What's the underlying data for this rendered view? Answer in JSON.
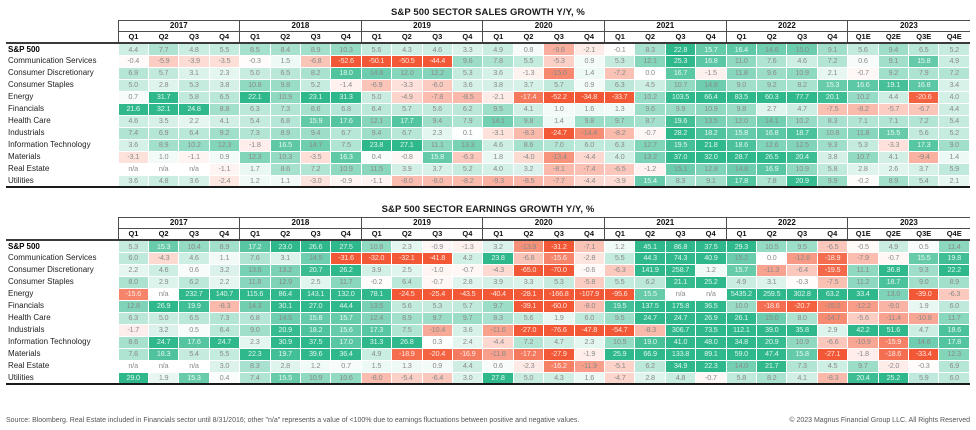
{
  "footer": {
    "source": "Source: Bloomberg. Real Estate included in Financials sector until 8/31/2016; other \"n/a\" represents a value of <100% due to earnings fluctuations between positive and negative values.",
    "copyright": "© 2023 Magnus Financial Group LLC. All Rights Reserved"
  },
  "colors": {
    "positive_full": "#2eb88b",
    "negative_full": "#f25835",
    "neutral": "#ffffff",
    "text_light": "#8a8a8a",
    "text_on_dark": "rgba(255,255,255,0.85)"
  },
  "chart_data": [
    {
      "type": "heatmap",
      "title": "S&P 500 SECTOR SALES GROWTH Y/Y, %",
      "unit": "% y/y",
      "years": [
        {
          "label": "2017",
          "quarters": [
            "Q1",
            "Q2",
            "Q3",
            "Q4"
          ]
        },
        {
          "label": "2018",
          "quarters": [
            "Q1",
            "Q2",
            "Q3",
            "Q4"
          ]
        },
        {
          "label": "2019",
          "quarters": [
            "Q1",
            "Q2",
            "Q3",
            "Q4"
          ]
        },
        {
          "label": "2020",
          "quarters": [
            "Q1",
            "Q2",
            "Q3",
            "Q4"
          ]
        },
        {
          "label": "2021",
          "quarters": [
            "Q1",
            "Q2",
            "Q3",
            "Q4"
          ]
        },
        {
          "label": "2022",
          "quarters": [
            "Q1",
            "Q2",
            "Q3",
            "Q4"
          ]
        },
        {
          "label": "2023",
          "quarters": [
            "Q1E",
            "Q2E",
            "Q3E",
            "Q4E"
          ]
        }
      ],
      "rows": [
        {
          "name": "S&P 500",
          "bold": true,
          "values": [
            "4.4",
            "7.7",
            "4.8",
            "5.5",
            "8.5",
            "8.4",
            "8.9",
            "10.3",
            "5.6",
            "4.3",
            "4.6",
            "3.3",
            "4.9",
            "0.8",
            "-9.8",
            "-2.1",
            "-0.1",
            "8.3",
            "22.8",
            "15.7",
            "16.4",
            "14.6",
            "15.0",
            "9.1",
            "5.6",
            "9.4",
            "6.5",
            "5.2"
          ]
        },
        {
          "name": "Communication Services",
          "bold": false,
          "values": [
            "-0.4",
            "-5.9",
            "-3.9",
            "-3.5",
            "-0.3",
            "1.5",
            "-6.8",
            "-52.6",
            "-50.1",
            "-50.5",
            "-44.4",
            "9.6",
            "7.8",
            "5.5",
            "-5.3",
            "0.9",
            "5.3",
            "12.1",
            "25.3",
            "16.8",
            "11.0",
            "7.6",
            "4.6",
            "7.2",
            "0.6",
            "9.1",
            "15.8",
            "4.9"
          ]
        },
        {
          "name": "Consumer Discretionary",
          "bold": false,
          "values": [
            "6.9",
            "5.7",
            "3.1",
            "2.3",
            "5.0",
            "6.5",
            "8.2",
            "18.0",
            "14.8",
            "12.0",
            "12.2",
            "5.3",
            "3.6",
            "-1.3",
            "-15.0",
            "1.4",
            "-7.2",
            "0.0",
            "16.7",
            "-1.5",
            "11.8",
            "9.6",
            "10.9",
            "2.1",
            "-0.7",
            "9.2",
            "7.9",
            "7.2"
          ]
        },
        {
          "name": "Consumer Staples",
          "bold": false,
          "values": [
            "5.0",
            "2.8",
            "5.3",
            "3.8",
            "10.8",
            "9.8",
            "5.2",
            "-1.4",
            "-6.9",
            "-3.3",
            "-6.0",
            "3.6",
            "3.8",
            "3.7",
            "5.7",
            "0.9",
            "6.3",
            "4.5",
            "10.7",
            "14.8",
            "9.0",
            "9.2",
            "8.2",
            "15.3",
            "16.6",
            "19.1",
            "16.8",
            "3.4"
          ]
        },
        {
          "name": "Energy",
          "bold": false,
          "values": [
            "0.7",
            "31.7",
            "5.8",
            "6.5",
            "22.1",
            "10.9",
            "23.1",
            "31.3",
            "5.0",
            "-4.9",
            "-7.8",
            "-8.5",
            "-2.1",
            "-17.4",
            "-52.2",
            "-34.8",
            "-33.7",
            "10.2",
            "103.5",
            "66.4",
            "83.5",
            "60.3",
            "77.7",
            "20.1",
            "10.2",
            "4.4",
            "-20.6",
            "4.0"
          ]
        },
        {
          "name": "Financials",
          "bold": false,
          "values": [
            "21.6",
            "32.1",
            "24.8",
            "8.8",
            "6.3",
            "7.3",
            "8.6",
            "6.8",
            "6.4",
            "5.7",
            "5.6",
            "6.2",
            "9.5",
            "4.1",
            "1.0",
            "1.6",
            "1.3",
            "9.6",
            "9.9",
            "10.9",
            "9.8",
            "2.7",
            "4.7",
            "-7.5",
            "-8.2",
            "-5.7",
            "-6.7",
            "4.4"
          ]
        },
        {
          "name": "Health Care",
          "bold": false,
          "values": [
            "4.6",
            "3.5",
            "2.2",
            "4.1",
            "5.4",
            "6.8",
            "15.9",
            "17.6",
            "12.1",
            "17.7",
            "9.4",
            "7.9",
            "14.1",
            "9.8",
            "1.4",
            "9.8",
            "9.7",
            "8.7",
            "19.6",
            "13.5",
            "12.0",
            "14.1",
            "10.2",
            "8.3",
            "7.1",
            "7.1",
            "7.2",
            "5.4"
          ]
        },
        {
          "name": "Industrials",
          "bold": false,
          "values": [
            "7.4",
            "6.9",
            "6.4",
            "9.2",
            "7.3",
            "8.9",
            "9.4",
            "6.7",
            "9.4",
            "6.7",
            "2.3",
            "0.1",
            "-3.1",
            "-8.3",
            "-24.7",
            "-14.4",
            "-8.2",
            "-0.7",
            "28.2",
            "18.2",
            "15.8",
            "16.8",
            "18.7",
            "10.8",
            "11.8",
            "15.5",
            "5.6",
            "5.2"
          ]
        },
        {
          "name": "Information Technology",
          "bold": false,
          "values": [
            "3.6",
            "8.9",
            "10.2",
            "12.3",
            "-1.8",
            "16.5",
            "14.7",
            "7.5",
            "23.8",
            "27.1",
            "11.1",
            "13.3",
            "4.6",
            "8.6",
            "7.0",
            "6.0",
            "6.3",
            "12.7",
            "19.5",
            "21.8",
            "18.6",
            "12.6",
            "12.5",
            "9.3",
            "5.3",
            "-3.3",
            "17.3",
            "9.0"
          ]
        },
        {
          "name": "Materials",
          "bold": false,
          "values": [
            "-3.1",
            "1.0",
            "-1.1",
            "0.9",
            "12.3",
            "10.3",
            "-3.5",
            "16.3",
            "0.4",
            "-0.8",
            "15.8",
            "-6.3",
            "1.8",
            "-4.0",
            "-13.4",
            "-4.4",
            "4.0",
            "13.2",
            "37.0",
            "32.0",
            "28.7",
            "26.5",
            "20.4",
            "3.8",
            "10.7",
            "4.1",
            "-9.4",
            "1.4"
          ]
        },
        {
          "name": "Real Estate",
          "bold": false,
          "values": [
            "n/a",
            "n/a",
            "n/a",
            "-1.1",
            "1.7",
            "8.6",
            "7.2",
            "10.9",
            "11.5",
            "3.9",
            "3.7",
            "5.2",
            "4.0",
            "3.2",
            "-8.1",
            "-7.4",
            "-6.5",
            "-1.2",
            "15.1",
            "12.8",
            "14.8",
            "16.9",
            "10.9",
            "5.8",
            "2.8",
            "2.6",
            "3.7",
            "5.9"
          ]
        },
        {
          "name": "Utilities",
          "bold": false,
          "values": [
            "3.6",
            "4.8",
            "3.6",
            "-2.4",
            "1.2",
            "1.1",
            "-3.0",
            "-0.9",
            "-1.1",
            "-8.0",
            "-8.0",
            "-8.2",
            "-9.3",
            "-8.5",
            "-7.7",
            "-4.4",
            "-3.9",
            "15.4",
            "8.3",
            "9.1",
            "17.8",
            "7.8",
            "20.9",
            "9.9",
            "-0.2",
            "8.9",
            "5.4",
            "2.1"
          ]
        }
      ]
    },
    {
      "type": "heatmap",
      "title": "S&P 500 SECTOR EARNINGS GROWTH Y/Y, %",
      "unit": "% y/y",
      "years": [
        {
          "label": "2017",
          "quarters": [
            "Q1",
            "Q2",
            "Q3",
            "Q4"
          ]
        },
        {
          "label": "2018",
          "quarters": [
            "Q1",
            "Q2",
            "Q3",
            "Q4"
          ]
        },
        {
          "label": "2019",
          "quarters": [
            "Q1",
            "Q2",
            "Q3",
            "Q4"
          ]
        },
        {
          "label": "2020",
          "quarters": [
            "Q1",
            "Q2",
            "Q3",
            "Q4"
          ]
        },
        {
          "label": "2021",
          "quarters": [
            "Q1",
            "Q2",
            "Q3",
            "Q4"
          ]
        },
        {
          "label": "2022",
          "quarters": [
            "Q1",
            "Q2",
            "Q3",
            "Q4"
          ]
        },
        {
          "label": "2023",
          "quarters": [
            "Q1E",
            "Q2E",
            "Q3E",
            "Q4E"
          ]
        }
      ],
      "rows": [
        {
          "name": "S&P 500",
          "bold": true,
          "values": [
            "5.3",
            "15.3",
            "10.4",
            "8.9",
            "17.2",
            "23.0",
            "26.6",
            "27.5",
            "10.8",
            "2.3",
            "-0.9",
            "-1.3",
            "3.2",
            "-13.9",
            "-31.2",
            "-7.1",
            "1.2",
            "45.1",
            "86.8",
            "37.5",
            "29.3",
            "10.5",
            "9.5",
            "-6.5",
            "-0.5",
            "4.9",
            "0.5",
            "11.4"
          ]
        },
        {
          "name": "Communication Services",
          "bold": false,
          "values": [
            "6.0",
            "-4.3",
            "4.6",
            "1.1",
            "7.6",
            "3.1",
            "14.5",
            "-31.6",
            "-32.0",
            "-32.1",
            "-41.8",
            "4.2",
            "23.8",
            "-6.8",
            "-15.6",
            "-2.8",
            "5.5",
            "44.3",
            "74.3",
            "40.9",
            "15.2",
            "0.0",
            "-12.6",
            "-18.9",
            "-7.9",
            "-0.7",
            "15.5",
            "19.8"
          ]
        },
        {
          "name": "Consumer Discretionary",
          "bold": false,
          "values": [
            "2.2",
            "4.6",
            "0.6",
            "3.2",
            "13.6",
            "13.2",
            "20.7",
            "26.2",
            "3.9",
            "2.5",
            "-1.0",
            "-0.7",
            "-4.3",
            "-65.0",
            "-70.0",
            "-0.6",
            "-6.3",
            "141.9",
            "258.7",
            "1.2",
            "15.7",
            "-11.3",
            "-6.4",
            "-19.5",
            "11.1",
            "36.8",
            "9.3",
            "22.2"
          ]
        },
        {
          "name": "Consumer Staples",
          "bold": false,
          "values": [
            "8.0",
            "2.9",
            "6.2",
            "2.2",
            "11.8",
            "12.9",
            "2.5",
            "11.7",
            "-0.2",
            "6.4",
            "-0.7",
            "2.8",
            "3.9",
            "3.3",
            "5.3",
            "-5.8",
            "5.5",
            "6.2",
            "21.1",
            "25.2",
            "4.9",
            "3.1",
            "-0.3",
            "-7.5",
            "11.2",
            "18.7",
            "9.0",
            "8.9"
          ]
        },
        {
          "name": "Energy",
          "bold": false,
          "values": [
            "-15.6",
            "n/a",
            "232.7",
            "140.7",
            "115.6",
            "86.4",
            "143.1",
            "132.0",
            "78.1",
            "-24.5",
            "-25.4",
            "-43.5",
            "-40.4",
            "-28.1",
            "-166.8",
            "-107.9",
            "-95.6",
            "15.5",
            "n/a",
            "n/a",
            "5435.2",
            "259.5",
            "302.8",
            "63.2",
            "33.4",
            "13.0",
            "-39.0",
            "-6.3"
          ]
        },
        {
          "name": "Financials",
          "bold": false,
          "values": [
            "12.8",
            "26.9",
            "19.9",
            "-8.3",
            "14.3",
            "30.1",
            "27.0",
            "44.4",
            "13.5",
            "5.6",
            "5.3",
            "5.7",
            "9.7",
            "-39.1",
            "-60.0",
            "-8.0",
            "19.5",
            "137.5",
            "175.8",
            "36.5",
            "10.0",
            "-18.6",
            "-20.7",
            "-15.0",
            "-12.2",
            "-9.0",
            "1.9",
            "6.0"
          ]
        },
        {
          "name": "Health Care",
          "bold": false,
          "values": [
            "6.3",
            "5.0",
            "6.5",
            "7.3",
            "6.8",
            "14.5",
            "15.8",
            "15.7",
            "12.4",
            "8.9",
            "9.7",
            "9.7",
            "8.3",
            "5.6",
            "1.9",
            "6.0",
            "9.5",
            "24.7",
            "24.7",
            "26.9",
            "26.1",
            "15.0",
            "8.0",
            "-14.7",
            "-5.6",
            "-11.4",
            "-10.8",
            "11.7"
          ]
        },
        {
          "name": "Industrials",
          "bold": false,
          "values": [
            "-1.7",
            "3.2",
            "0.5",
            "6.4",
            "9.0",
            "20.9",
            "18.2",
            "15.6",
            "17.3",
            "7.5",
            "-10.4",
            "3.6",
            "-11.6",
            "-27.0",
            "-76.6",
            "-47.8",
            "-54.7",
            "-8.3",
            "306.7",
            "73.5",
            "112.1",
            "39.0",
            "35.8",
            "2.9",
            "42.2",
            "51.6",
            "4.7",
            "18.6"
          ]
        },
        {
          "name": "Information Technology",
          "bold": false,
          "values": [
            "8.6",
            "24.7",
            "17.6",
            "24.7",
            "2.3",
            "30.9",
            "37.5",
            "17.0",
            "31.3",
            "26.8",
            "0.3",
            "2.4",
            "-4.4",
            "7.2",
            "4.7",
            "2.3",
            "10.5",
            "19.0",
            "41.0",
            "48.0",
            "34.8",
            "20.9",
            "10.9",
            "-6.6",
            "-10.9",
            "-15.9",
            "14.6",
            "17.8"
          ]
        },
        {
          "name": "Materials",
          "bold": false,
          "values": [
            "7.6",
            "18.3",
            "5.4",
            "5.5",
            "22.3",
            "19.7",
            "39.6",
            "36.4",
            "4.9",
            "-18.9",
            "-20.4",
            "-16.9",
            "-11.8",
            "-17.2",
            "-27.9",
            "-1.9",
            "25.9",
            "66.9",
            "133.8",
            "89.1",
            "59.0",
            "47.4",
            "15.8",
            "-27.1",
            "-1.8",
            "-18.6",
            "-33.4",
            "12.3"
          ]
        },
        {
          "name": "Real Estate",
          "bold": false,
          "values": [
            "n/a",
            "n/a",
            "n/a",
            "3.0",
            "8.3",
            "2.8",
            "1.2",
            "0.7",
            "1.5",
            "1.3",
            "0.9",
            "4.4",
            "0.6",
            "-2.3",
            "-16.2",
            "-11.9",
            "-5.1",
            "6.2",
            "34.9",
            "22.3",
            "14.0",
            "21.7",
            "7.3",
            "4.5",
            "9.7",
            "-2.0",
            "-0.3",
            "6.9"
          ]
        },
        {
          "name": "Utilities",
          "bold": false,
          "values": [
            "29.0",
            "1.9",
            "15.3",
            "0.4",
            "7.4",
            "15.5",
            "10.9",
            "10.6",
            "-8.0",
            "-5.4",
            "-6.4",
            "3.0",
            "27.8",
            "5.0",
            "4.3",
            "1.6",
            "-4.7",
            "2.8",
            "4.8",
            "-0.7",
            "5.8",
            "8.2",
            "4.1",
            "-8.3",
            "20.4",
            "25.2",
            "5.9",
            "6.0"
          ]
        }
      ]
    }
  ]
}
